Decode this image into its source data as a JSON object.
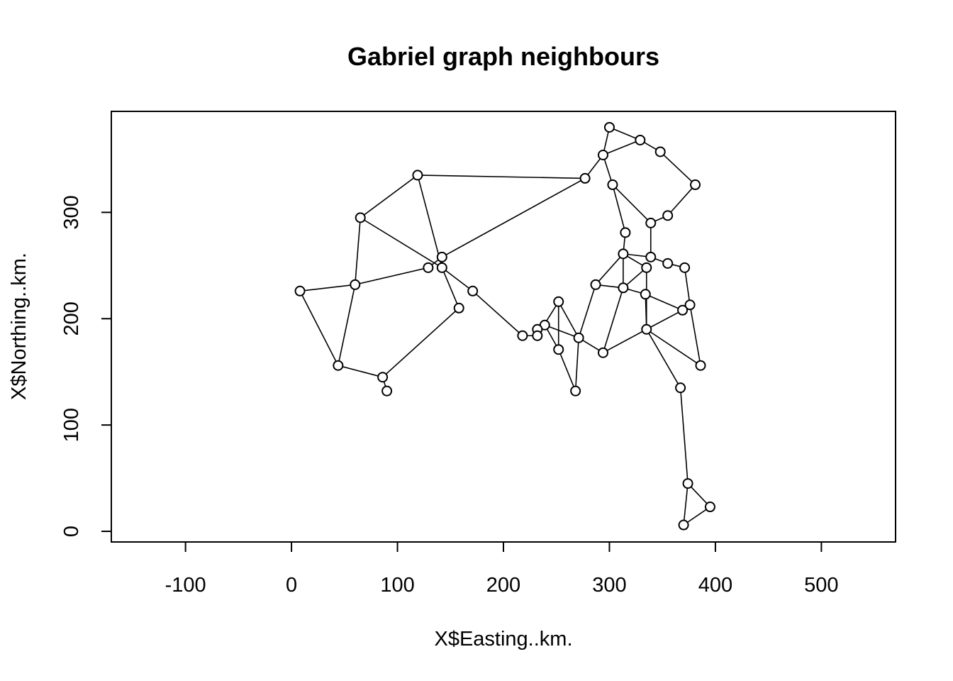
{
  "chart_data": {
    "type": "scatter",
    "title": "Gabriel graph neighbours",
    "xlabel": "X$Easting..km.",
    "ylabel": "X$Northing..km.",
    "xlim": [
      -170,
      570
    ],
    "ylim": [
      -10,
      395
    ],
    "grid": false,
    "legend": "none",
    "x_ticks": [
      -100,
      0,
      100,
      200,
      300,
      400,
      500
    ],
    "x_tick_labels": [
      "-100",
      "0",
      "100",
      "200",
      "300",
      "400",
      "500"
    ],
    "y_ticks": [
      0,
      100,
      200,
      300
    ],
    "y_tick_labels": [
      "0",
      "100",
      "200",
      "300"
    ],
    "points": [
      {
        "x": 300,
        "y": 380
      },
      {
        "x": 329,
        "y": 368
      },
      {
        "x": 348,
        "y": 357
      },
      {
        "x": 294,
        "y": 354
      },
      {
        "x": 277,
        "y": 332
      },
      {
        "x": 303,
        "y": 326
      },
      {
        "x": 381,
        "y": 326
      },
      {
        "x": 355,
        "y": 297
      },
      {
        "x": 339,
        "y": 290
      },
      {
        "x": 315,
        "y": 281
      },
      {
        "x": 119,
        "y": 335
      },
      {
        "x": 65,
        "y": 295
      },
      {
        "x": 142,
        "y": 258
      },
      {
        "x": 129,
        "y": 248
      },
      {
        "x": 142,
        "y": 248
      },
      {
        "x": 313,
        "y": 261
      },
      {
        "x": 339,
        "y": 258
      },
      {
        "x": 355,
        "y": 252
      },
      {
        "x": 371,
        "y": 248
      },
      {
        "x": 335,
        "y": 248
      },
      {
        "x": 8,
        "y": 226
      },
      {
        "x": 60,
        "y": 232
      },
      {
        "x": 171,
        "y": 226
      },
      {
        "x": 287,
        "y": 232
      },
      {
        "x": 313,
        "y": 229
      },
      {
        "x": 334,
        "y": 223
      },
      {
        "x": 376,
        "y": 213
      },
      {
        "x": 369,
        "y": 208
      },
      {
        "x": 158,
        "y": 210
      },
      {
        "x": 252,
        "y": 216
      },
      {
        "x": 239,
        "y": 194
      },
      {
        "x": 232,
        "y": 190
      },
      {
        "x": 232,
        "y": 184
      },
      {
        "x": 218,
        "y": 184
      },
      {
        "x": 271,
        "y": 182
      },
      {
        "x": 335,
        "y": 190
      },
      {
        "x": 252,
        "y": 171
      },
      {
        "x": 294,
        "y": 168
      },
      {
        "x": 44,
        "y": 156
      },
      {
        "x": 86,
        "y": 145
      },
      {
        "x": 90,
        "y": 132
      },
      {
        "x": 268,
        "y": 132
      },
      {
        "x": 386,
        "y": 156
      },
      {
        "x": 367,
        "y": 135
      },
      {
        "x": 374,
        "y": 45
      },
      {
        "x": 395,
        "y": 23
      },
      {
        "x": 370,
        "y": 6
      }
    ],
    "edges": [
      [
        0,
        1
      ],
      [
        0,
        3
      ],
      [
        1,
        2
      ],
      [
        1,
        3
      ],
      [
        2,
        6
      ],
      [
        6,
        7
      ],
      [
        7,
        8
      ],
      [
        3,
        4
      ],
      [
        3,
        5
      ],
      [
        5,
        8
      ],
      [
        5,
        9
      ],
      [
        4,
        10
      ],
      [
        4,
        12
      ],
      [
        10,
        11
      ],
      [
        10,
        14
      ],
      [
        11,
        14
      ],
      [
        11,
        21
      ],
      [
        21,
        20
      ],
      [
        20,
        38
      ],
      [
        21,
        38
      ],
      [
        21,
        13
      ],
      [
        13,
        12
      ],
      [
        12,
        14
      ],
      [
        14,
        28
      ],
      [
        14,
        22
      ],
      [
        22,
        33
      ],
      [
        28,
        39
      ],
      [
        38,
        39
      ],
      [
        39,
        40
      ],
      [
        9,
        15
      ],
      [
        8,
        16
      ],
      [
        15,
        16
      ],
      [
        15,
        19
      ],
      [
        15,
        23
      ],
      [
        15,
        24
      ],
      [
        16,
        17
      ],
      [
        17,
        18
      ],
      [
        18,
        26
      ],
      [
        19,
        24
      ],
      [
        19,
        35
      ],
      [
        23,
        24
      ],
      [
        23,
        34
      ],
      [
        24,
        25
      ],
      [
        25,
        27
      ],
      [
        27,
        26
      ],
      [
        27,
        35
      ],
      [
        25,
        35
      ],
      [
        24,
        37
      ],
      [
        35,
        42
      ],
      [
        35,
        43
      ],
      [
        26,
        42
      ],
      [
        34,
        37
      ],
      [
        37,
        35
      ],
      [
        34,
        29
      ],
      [
        34,
        41
      ],
      [
        34,
        30
      ],
      [
        41,
        36
      ],
      [
        36,
        30
      ],
      [
        36,
        29
      ],
      [
        29,
        32
      ],
      [
        30,
        31
      ],
      [
        31,
        32
      ],
      [
        32,
        33
      ],
      [
        43,
        44
      ],
      [
        44,
        45
      ],
      [
        44,
        46
      ],
      [
        45,
        46
      ]
    ]
  }
}
